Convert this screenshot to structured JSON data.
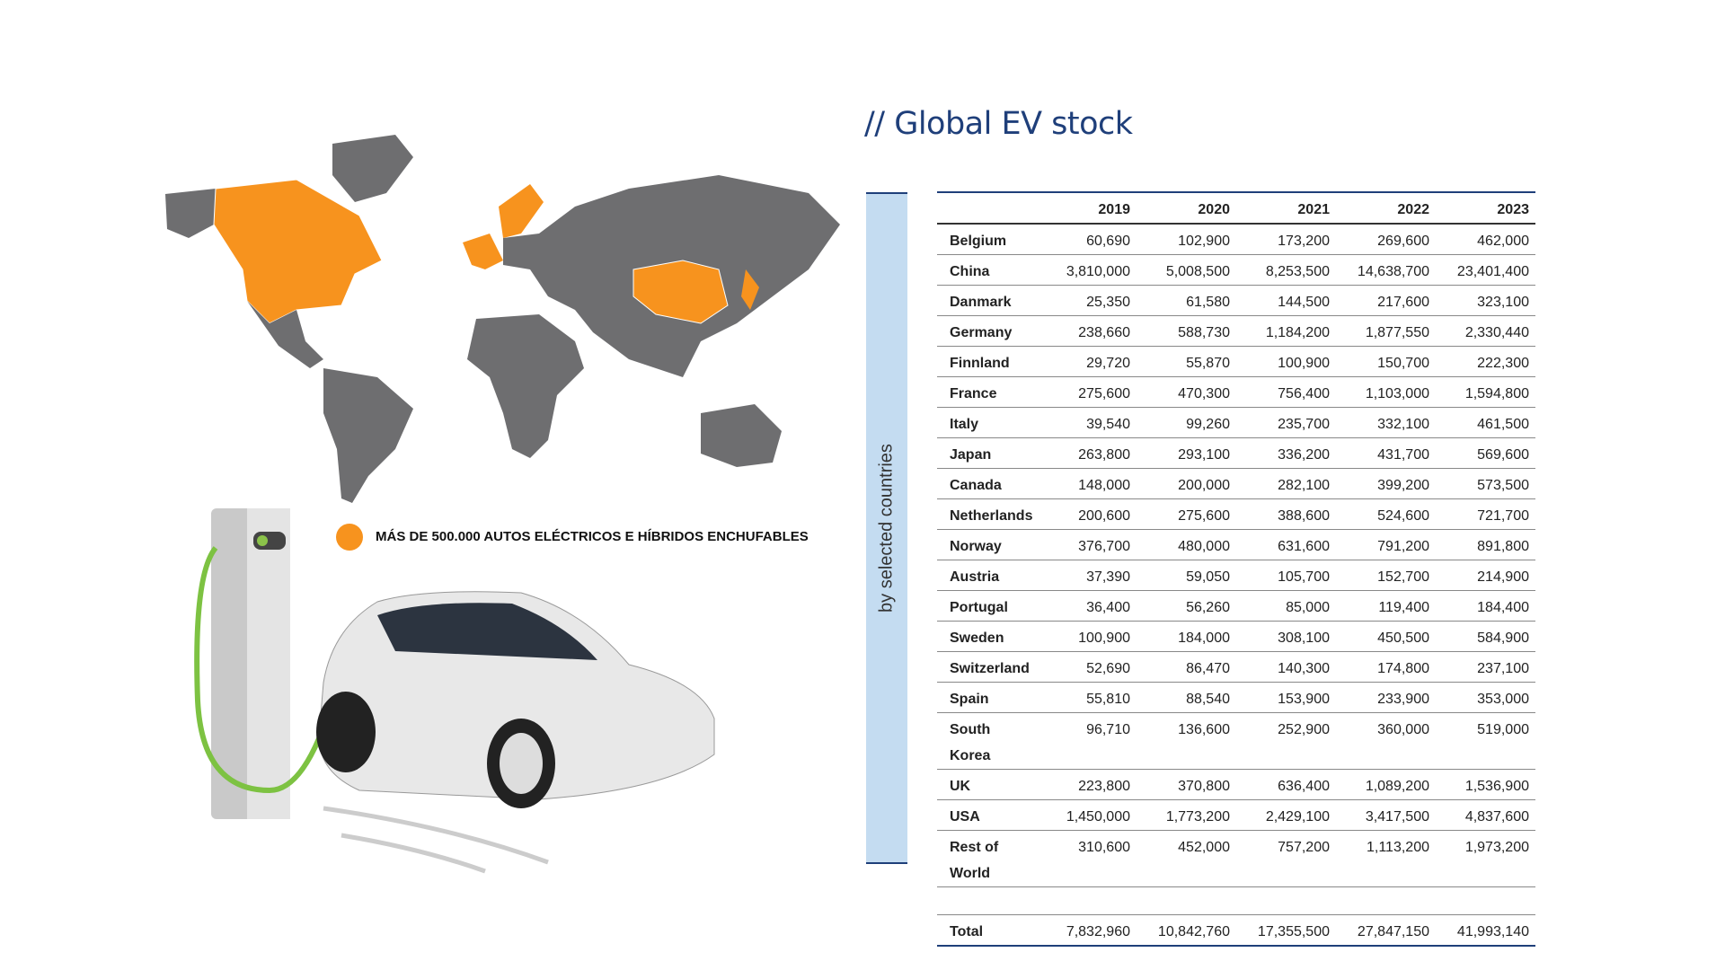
{
  "title": "// Global EV stock",
  "legend": "MÁS DE 500.000 AUTOS ELÉCTRICOS E HÍBRIDOS ENCHUFABLES",
  "side_label": "by selected countries",
  "table": {
    "columns": [
      "2019",
      "2020",
      "2021",
      "2022",
      "2023"
    ],
    "rows": [
      [
        "Belgium",
        "60,690",
        "102,900",
        "173,200",
        "269,600",
        "462,000"
      ],
      [
        "China",
        "3,810,000",
        "5,008,500",
        "8,253,500",
        "14,638,700",
        "23,401,400"
      ],
      [
        "Danmark",
        "25,350",
        "61,580",
        "144,500",
        "217,600",
        "323,100"
      ],
      [
        "Germany",
        "238,660",
        "588,730",
        "1,184,200",
        "1,877,550",
        "2,330,440"
      ],
      [
        "Finnland",
        "29,720",
        "55,870",
        "100,900",
        "150,700",
        "222,300"
      ],
      [
        "France",
        "275,600",
        "470,300",
        "756,400",
        "1,103,000",
        "1,594,800"
      ],
      [
        "Italy",
        "39,540",
        "99,260",
        "235,700",
        "332,100",
        "461,500"
      ],
      [
        "Japan",
        "263,800",
        "293,100",
        "336,200",
        "431,700",
        "569,600"
      ],
      [
        "Canada",
        "148,000",
        "200,000",
        "282,100",
        "399,200",
        "573,500"
      ],
      [
        "Netherlands",
        "200,600",
        "275,600",
        "388,600",
        "524,600",
        "721,700"
      ],
      [
        "Norway",
        "376,700",
        "480,000",
        "631,600",
        "791,200",
        "891,800"
      ],
      [
        "Austria",
        "37,390",
        "59,050",
        "105,700",
        "152,700",
        "214,900"
      ],
      [
        "Portugal",
        "36,400",
        "56,260",
        "85,000",
        "119,400",
        "184,400"
      ],
      [
        "Sweden",
        "100,900",
        "184,000",
        "308,100",
        "450,500",
        "584,900"
      ],
      [
        "Switzerland",
        "52,690",
        "86,470",
        "140,300",
        "174,800",
        "237,100"
      ],
      [
        "Spain",
        "55,810",
        "88,540",
        "153,900",
        "233,900",
        "353,000"
      ],
      [
        "South Korea",
        "96,710",
        "136,600",
        "252,900",
        "360,000",
        "519,000"
      ],
      [
        "UK",
        "223,800",
        "370,800",
        "636,400",
        "1,089,200",
        "1,536,900"
      ],
      [
        "USA",
        "1,450,000",
        "1,773,200",
        "2,429,100",
        "3,417,500",
        "4,837,600"
      ],
      [
        "Rest of World",
        "310,600",
        "452,000",
        "757,200",
        "1,113,200",
        "1,973,200"
      ]
    ],
    "total": [
      "Total",
      "7,832,960",
      "10,842,760",
      "17,355,500",
      "27,847,150",
      "41,993,140"
    ]
  }
}
